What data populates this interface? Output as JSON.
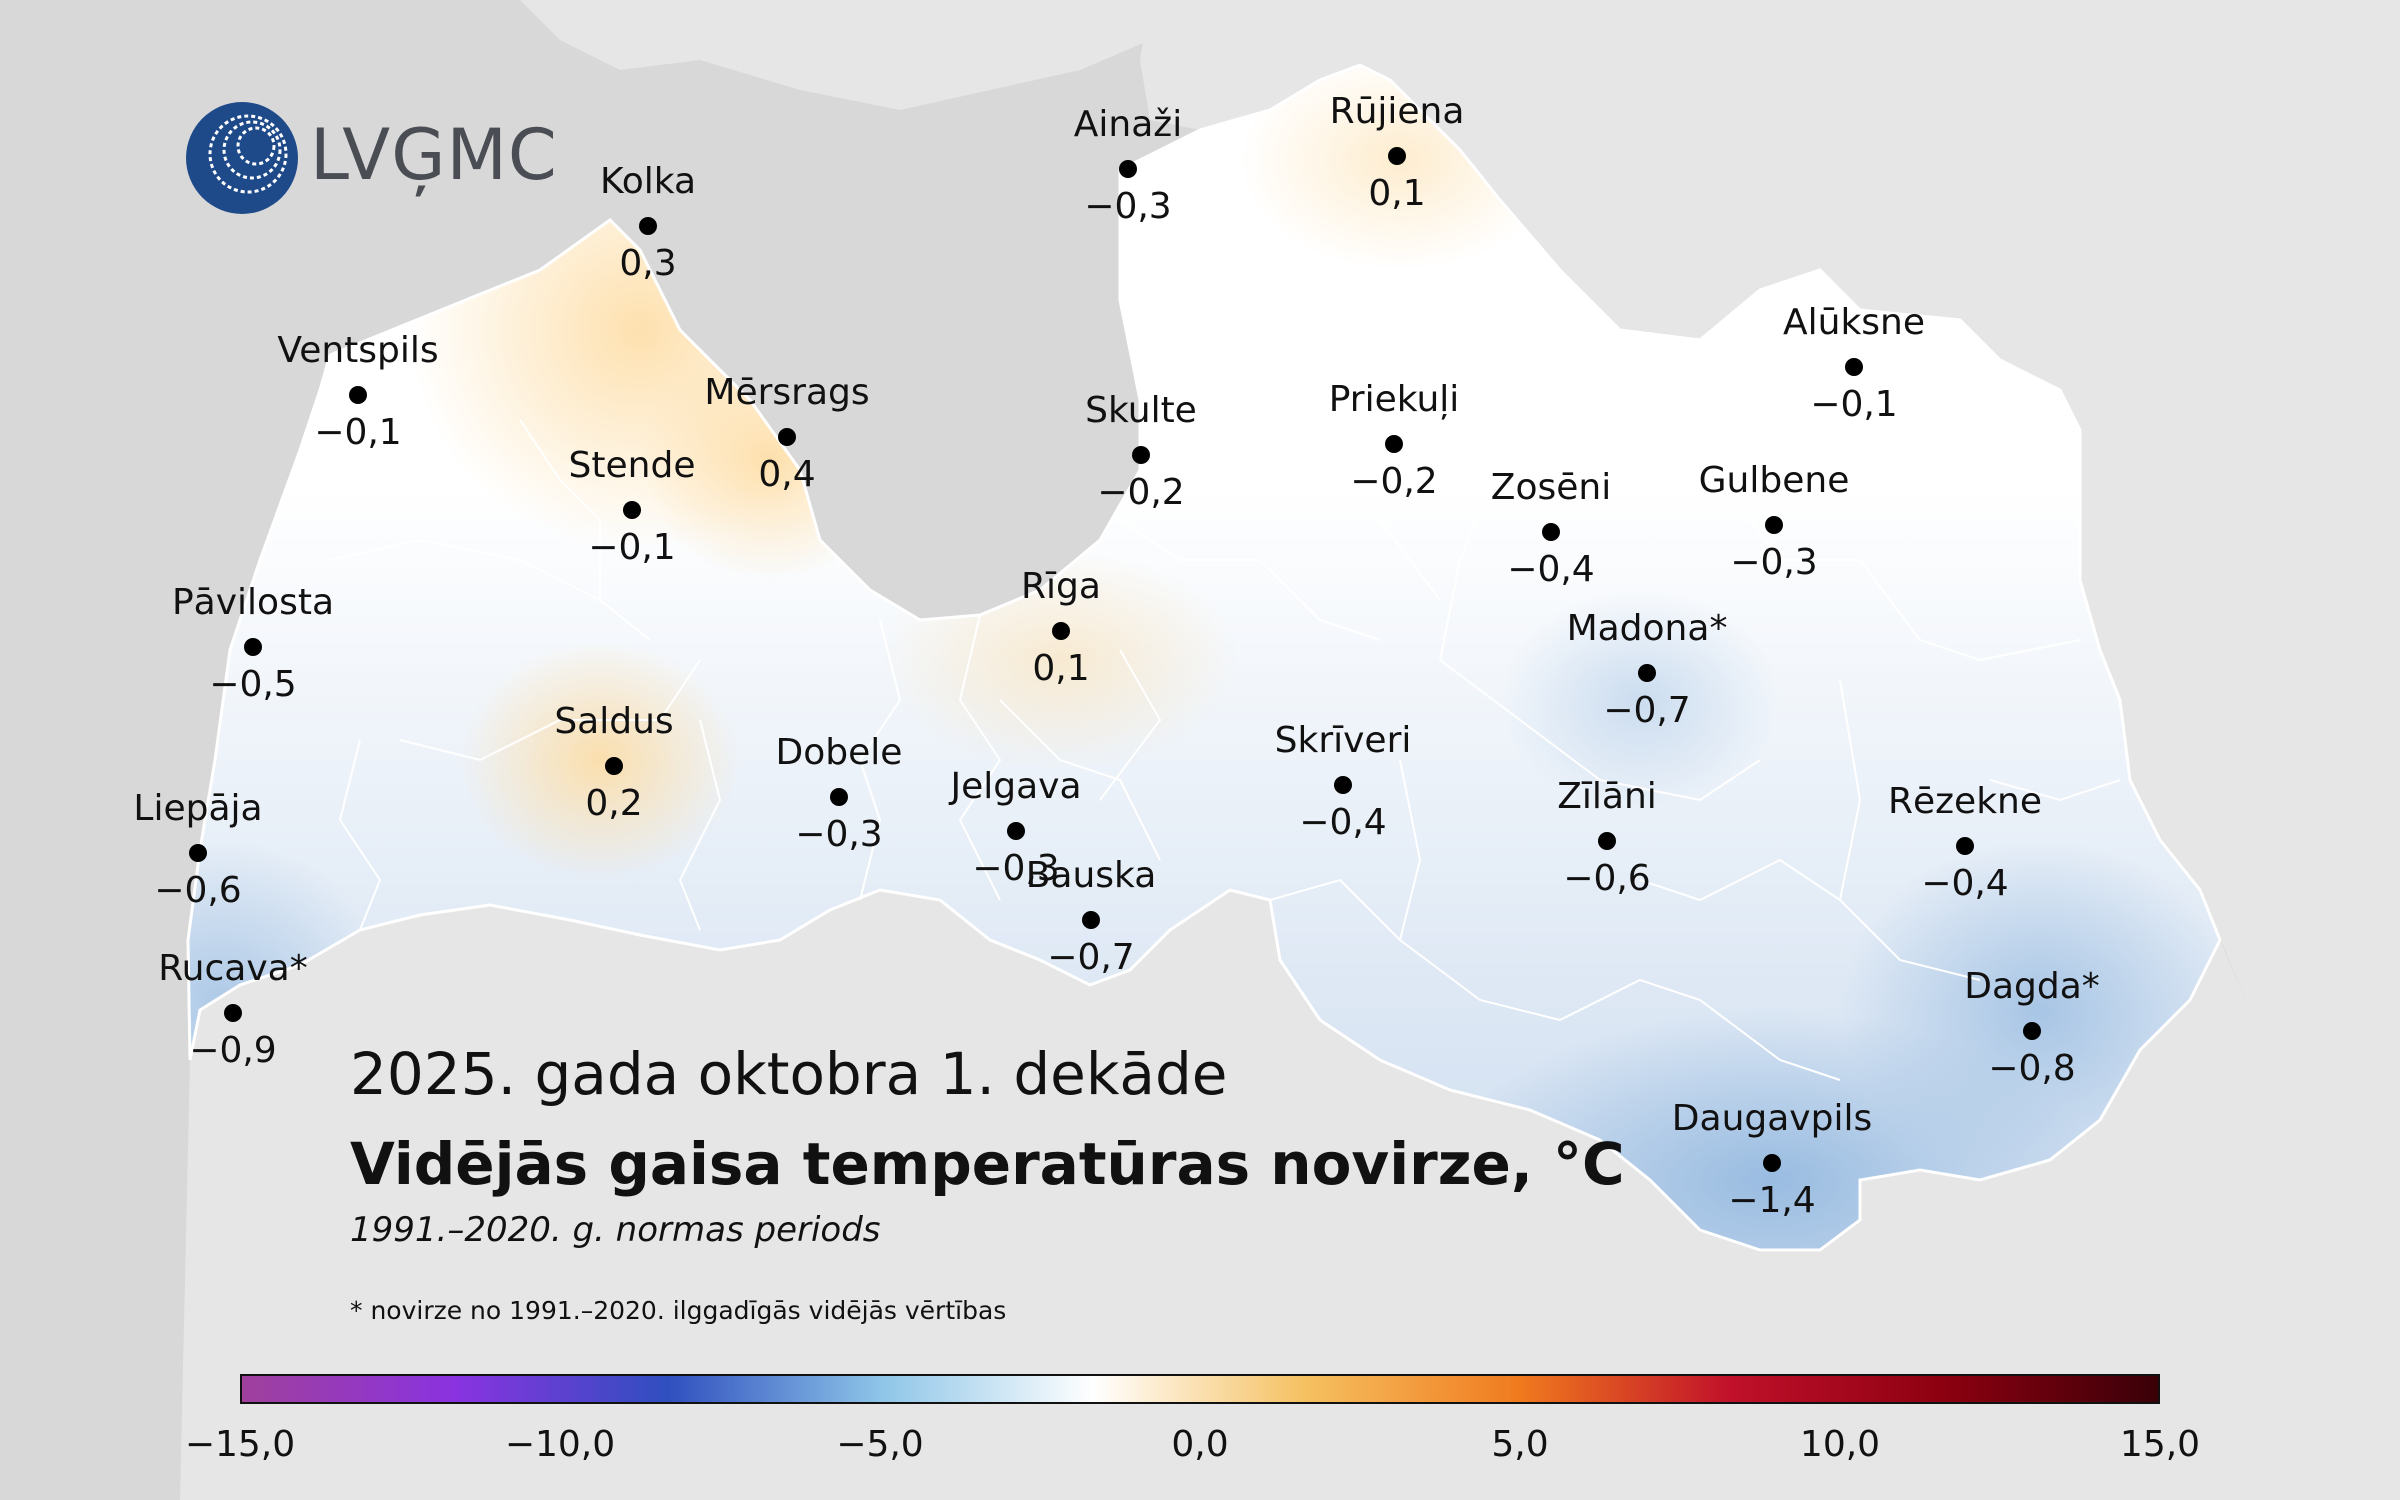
{
  "logo": {
    "name": "LVĢMC"
  },
  "title": "2025. gada oktobra 1. dekāde",
  "subtitle": "Vidējās gaisa temperatūras novirze, °C",
  "period": "1991.–2020. g. normas periods",
  "footnote": "* novirze no 1991.–2020. ilggadīgās vidējās vērtības",
  "colors": {
    "sea": "#d8d8d8",
    "neighbors": "#e6e6e6",
    "border": "#ffffff",
    "warm": "#fde4b8",
    "neutral": "#ffffff",
    "cool": "#c9daee",
    "cold": "#a9c6e4"
  },
  "colorbar": {
    "ticks": [
      "−15,0",
      "−10,0",
      "−5,0",
      "0,0",
      "5,0",
      "10,0",
      "15,0"
    ],
    "range": [
      -15,
      15
    ],
    "stops": [
      "#a0409c",
      "#8a33e0",
      "#2f4fbf",
      "#8ec5e8",
      "#ffffff",
      "#f5c060",
      "#f07a1e",
      "#c0102a",
      "#8c0010",
      "#3a0008"
    ]
  },
  "stations": [
    {
      "name": "Kolka",
      "value": "0,3"
    },
    {
      "name": "Ainaži",
      "value": "−0,3"
    },
    {
      "name": "Rūjiena",
      "value": "0,1"
    },
    {
      "name": "Ventspils",
      "value": "−0,1"
    },
    {
      "name": "Mērsrags",
      "value": "0,4"
    },
    {
      "name": "Stende",
      "value": "−0,1"
    },
    {
      "name": "Skulte",
      "value": "−0,2"
    },
    {
      "name": "Priekuļi",
      "value": "−0,2"
    },
    {
      "name": "Alūksne",
      "value": "−0,1"
    },
    {
      "name": "Zosēni",
      "value": "−0,4"
    },
    {
      "name": "Gulbene",
      "value": "−0,3"
    },
    {
      "name": "Pāvilosta",
      "value": "−0,5"
    },
    {
      "name": "Rīga",
      "value": "0,1"
    },
    {
      "name": "Madona*",
      "value": "−0,7"
    },
    {
      "name": "Saldus",
      "value": "0,2"
    },
    {
      "name": "Dobele",
      "value": "−0,3"
    },
    {
      "name": "Jelgava",
      "value": "−0,3"
    },
    {
      "name": "Skrīveri",
      "value": "−0,4"
    },
    {
      "name": "Zīlāni",
      "value": "−0,6"
    },
    {
      "name": "Rēzekne",
      "value": "−0,4"
    },
    {
      "name": "Liepāja",
      "value": "−0,6"
    },
    {
      "name": "Bauska",
      "value": "−0,7"
    },
    {
      "name": "Rucava*",
      "value": "−0,9"
    },
    {
      "name": "Dagda*",
      "value": "−0,8"
    },
    {
      "name": "Daugavpils",
      "value": "−1,4"
    }
  ]
}
